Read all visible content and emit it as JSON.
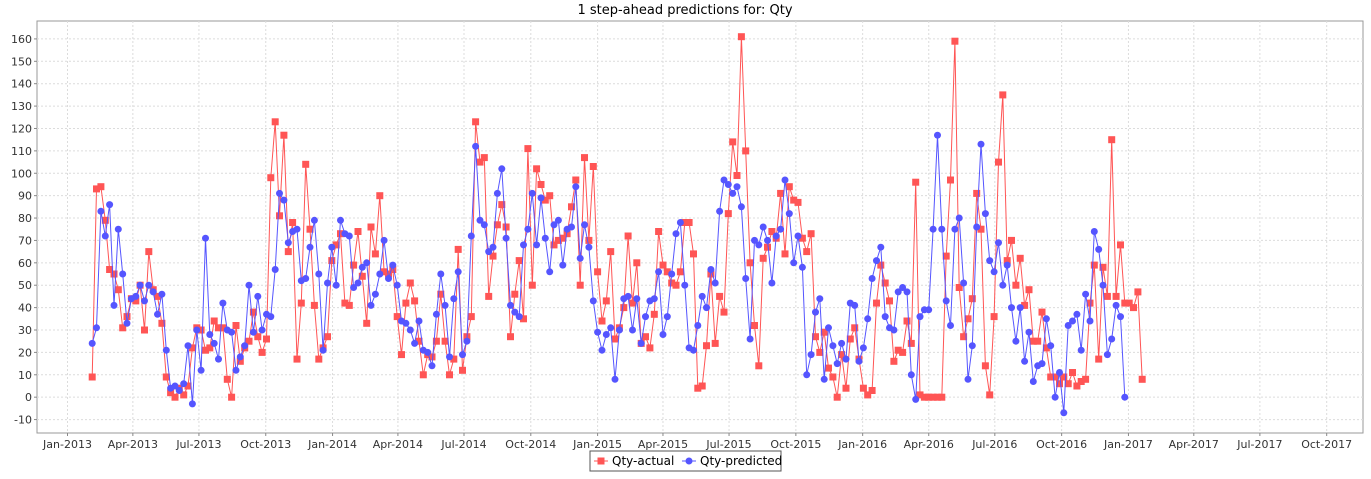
{
  "chart_data": {
    "type": "line",
    "title": "1 step-ahead predictions for: Qty",
    "xlabel": "",
    "ylabel": "",
    "x_axis": {
      "kind": "date",
      "range": [
        "2012-11-20",
        "2017-11-20"
      ],
      "tick_labels": [
        "Jan-2013",
        "Apr-2013",
        "Jul-2013",
        "Oct-2013",
        "Jan-2014",
        "Apr-2014",
        "Jul-2014",
        "Oct-2014",
        "Jan-2015",
        "Apr-2015",
        "Jul-2015",
        "Oct-2015",
        "Jan-2016",
        "Apr-2016",
        "Jul-2016",
        "Oct-2016",
        "Jan-2017",
        "Apr-2017",
        "Jul-2017",
        "Oct-2017"
      ],
      "tick_dates": [
        "2013-01-01",
        "2013-04-01",
        "2013-07-01",
        "2013-10-01",
        "2014-01-01",
        "2014-04-01",
        "2014-07-01",
        "2014-10-01",
        "2015-01-01",
        "2015-04-01",
        "2015-07-01",
        "2015-10-01",
        "2016-01-01",
        "2016-04-01",
        "2016-07-01",
        "2016-10-01",
        "2017-01-01",
        "2017-04-01",
        "2017-07-01",
        "2017-10-01"
      ]
    },
    "y_axis": {
      "range": [
        -16,
        168
      ],
      "ticks": [
        -10,
        0,
        10,
        20,
        30,
        40,
        50,
        60,
        70,
        80,
        90,
        100,
        110,
        120,
        130,
        140,
        150,
        160
      ]
    },
    "grid": true,
    "legend_position": "bottom-center",
    "start_date": "2013-02-04",
    "interval_days": 6,
    "series": [
      {
        "name": "Qty-actual",
        "color": "#ff5555",
        "marker": "square",
        "values": [
          9,
          93,
          94,
          79,
          57,
          55,
          48,
          31,
          36,
          44,
          43,
          50,
          30,
          65,
          48,
          45,
          33,
          9,
          2,
          0,
          4,
          1,
          5,
          22,
          31,
          30,
          21,
          22,
          34,
          31,
          31,
          8,
          0,
          32,
          16,
          22,
          25,
          38,
          27,
          20,
          26,
          98,
          123,
          81,
          117,
          65,
          78,
          17,
          42,
          104,
          75,
          41,
          17,
          22,
          27,
          61,
          68,
          73,
          42,
          41,
          59,
          74,
          54,
          33,
          76,
          64,
          90,
          56,
          55,
          57,
          36,
          19,
          42,
          51,
          43,
          25,
          10,
          19,
          18,
          25,
          46,
          25,
          10,
          17,
          66,
          12,
          27,
          36,
          123,
          105,
          107,
          45,
          63,
          77,
          86,
          76,
          27,
          46,
          61,
          35,
          111,
          50,
          102,
          95,
          88,
          90,
          68,
          70,
          71,
          73,
          85,
          97,
          50,
          107,
          70,
          103,
          56,
          34,
          43,
          65,
          26,
          31,
          40,
          72,
          42,
          60,
          24,
          27,
          22,
          37,
          74,
          59,
          56,
          51,
          50,
          56,
          78,
          78,
          64,
          4,
          5,
          23,
          55,
          24,
          45,
          38,
          82,
          114,
          99,
          161,
          110,
          60,
          32,
          14,
          62,
          67,
          74,
          71,
          91,
          64,
          94,
          88,
          87,
          71,
          65,
          73,
          27,
          20,
          29,
          13,
          9,
          0,
          19,
          4,
          26,
          31,
          17,
          4,
          1,
          3,
          42,
          59,
          51,
          43,
          16,
          21,
          20,
          34,
          24,
          96,
          1,
          0,
          0,
          0,
          0,
          0,
          63,
          97,
          159,
          49,
          27,
          35,
          44,
          91,
          75,
          14,
          1,
          36,
          105,
          135,
          61,
          70,
          50,
          62,
          41,
          48,
          25,
          25,
          38,
          22,
          9,
          9,
          6,
          9,
          6,
          11,
          5,
          7,
          8,
          42,
          59,
          17,
          58,
          45,
          115,
          45,
          68,
          42,
          42,
          40,
          47,
          8
        ]
      },
      {
        "name": "Qty-predicted",
        "color": "#5555ff",
        "marker": "circle",
        "values": [
          24,
          31,
          83,
          72,
          86,
          41,
          75,
          55,
          33,
          44,
          45,
          50,
          43,
          50,
          47,
          37,
          46,
          21,
          4,
          5,
          3,
          6,
          23,
          -3,
          30,
          12,
          71,
          28,
          24,
          17,
          42,
          30,
          29,
          12,
          18,
          23,
          50,
          29,
          45,
          30,
          37,
          36,
          57,
          91,
          88,
          69,
          74,
          75,
          52,
          53,
          67,
          79,
          55,
          21,
          51,
          67,
          50,
          79,
          73,
          72,
          49,
          51,
          58,
          60,
          41,
          46,
          55,
          70,
          53,
          59,
          50,
          34,
          33,
          30,
          24,
          34,
          21,
          20,
          14,
          37,
          55,
          41,
          18,
          44,
          56,
          19,
          25,
          72,
          112,
          79,
          77,
          65,
          67,
          91,
          102,
          71,
          41,
          38,
          36,
          68,
          75,
          91,
          68,
          89,
          71,
          56,
          77,
          79,
          59,
          75,
          76,
          94,
          62,
          77,
          67,
          43,
          29,
          21,
          28,
          31,
          8,
          30,
          44,
          45,
          30,
          44,
          24,
          36,
          43,
          44,
          56,
          28,
          36,
          55,
          73,
          78,
          50,
          22,
          21,
          32,
          45,
          40,
          57,
          51,
          83,
          97,
          95,
          91,
          94,
          85,
          53,
          26,
          70,
          68,
          76,
          70,
          51,
          72,
          75,
          97,
          82,
          60,
          72,
          58,
          10,
          19,
          38,
          44,
          8,
          31,
          23,
          15,
          24,
          17,
          42,
          41,
          16,
          22,
          35,
          53,
          61,
          67,
          36,
          31,
          30,
          47,
          49,
          47,
          10,
          -1,
          36,
          39,
          39,
          75,
          117,
          75,
          43,
          32,
          75,
          80,
          51,
          8,
          23,
          76,
          113,
          82,
          61,
          56,
          69,
          50,
          59,
          40,
          25,
          40,
          16,
          29,
          7,
          14,
          15,
          35,
          23,
          0,
          11,
          -7,
          32,
          34,
          37,
          21,
          46,
          34,
          74,
          66,
          50,
          19,
          26,
          41,
          36,
          0
        ]
      }
    ]
  }
}
